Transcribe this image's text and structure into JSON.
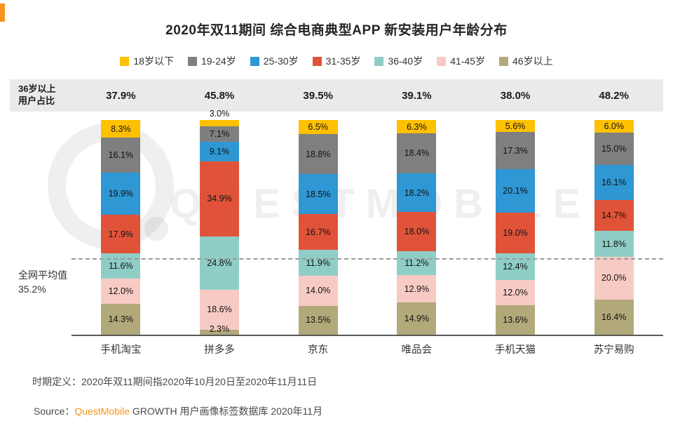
{
  "title": "2020年双11期间 综合电商典型APP 新安装用户年龄分布",
  "band": {
    "label_line1": "36岁以上",
    "label_line2": "用户占比",
    "values": [
      "37.9%",
      "45.8%",
      "39.5%",
      "39.1%",
      "38.0%",
      "48.2%"
    ]
  },
  "avg_note": {
    "line1": "全网平均值",
    "line2": "35.2%"
  },
  "chart_data": {
    "type": "bar",
    "stacked": true,
    "title": "2020年双11期间 综合电商典型APP 新安装用户年龄分布",
    "categories": [
      "手机淘宝",
      "拼多多",
      "京东",
      "唯品会",
      "手机天猫",
      "苏宁易购"
    ],
    "series": [
      {
        "name": "18岁以下",
        "color": "#FFC000",
        "values": [
          8.3,
          3.0,
          6.5,
          6.3,
          5.6,
          6.0
        ]
      },
      {
        "name": "19-24岁",
        "color": "#7F7F7F",
        "values": [
          16.1,
          7.1,
          18.8,
          18.4,
          17.3,
          15.0
        ]
      },
      {
        "name": "25-30岁",
        "color": "#2E97D4",
        "values": [
          19.9,
          9.1,
          18.5,
          18.2,
          20.1,
          16.1
        ]
      },
      {
        "name": "31-35岁",
        "color": "#E15339",
        "values": [
          17.9,
          34.9,
          16.7,
          18.0,
          19.0,
          14.7
        ]
      },
      {
        "name": "36-40岁",
        "color": "#8FCEC6",
        "values": [
          11.6,
          24.8,
          11.9,
          11.2,
          12.4,
          11.8
        ]
      },
      {
        "name": "41-45岁",
        "color": "#F7CBC4",
        "values": [
          12.0,
          18.6,
          14.0,
          12.9,
          12.0,
          20.0
        ]
      },
      {
        "name": "46岁以上",
        "color": "#B2A97A",
        "values": [
          14.3,
          2.3,
          13.5,
          14.9,
          13.6,
          16.4
        ]
      }
    ],
    "over36_share": [
      "37.9%",
      "45.8%",
      "39.5%",
      "39.1%",
      "38.0%",
      "48.2%"
    ],
    "network_average": 35.2,
    "ylim": [
      0,
      100
    ],
    "grid": false,
    "legend_position": "top"
  },
  "footnote": "时期定义：2020年双11期间指2020年10月20日至2020年11月11日",
  "source": {
    "prefix": "Source：",
    "brand": "QuestMobile",
    "suffix": " GROWTH 用户画像标签数据库 2020年11月"
  },
  "watermark": "QUESTMOBILE"
}
